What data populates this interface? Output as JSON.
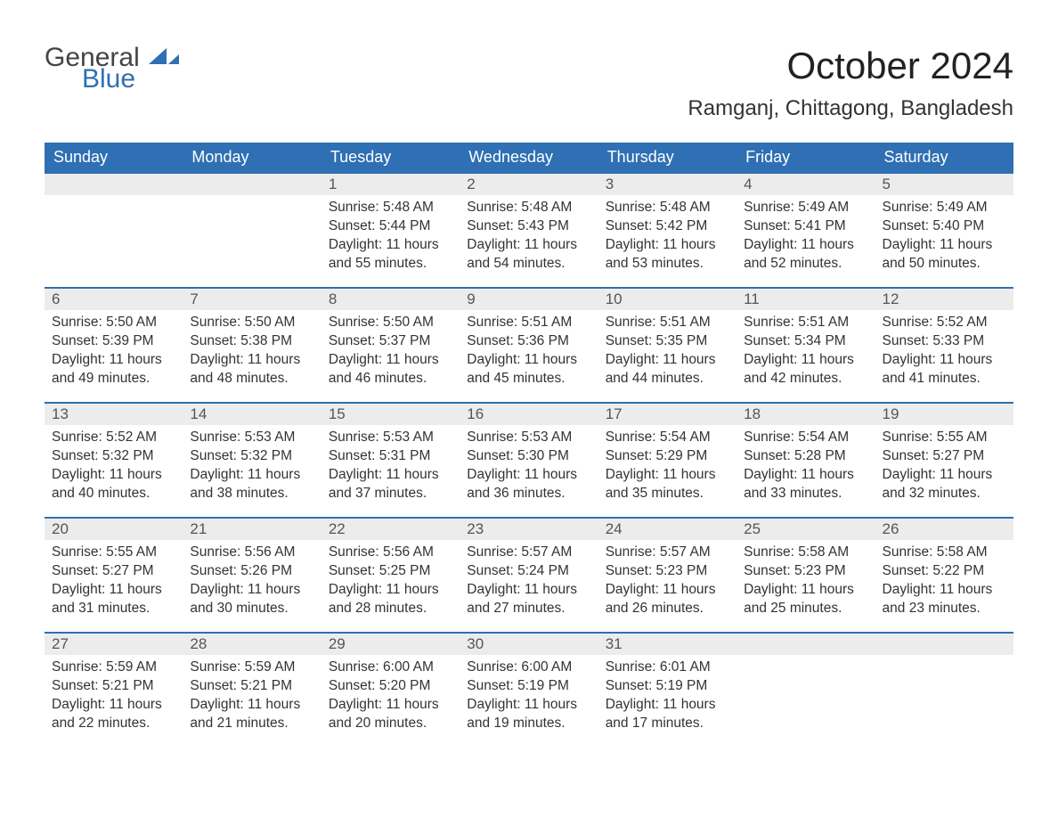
{
  "logo": {
    "text1": "General",
    "text2": "Blue"
  },
  "title": "October 2024",
  "location": "Ramganj, Chittagong, Bangladesh",
  "header_color": "#2f6fb3",
  "header_text_color": "#ffffff",
  "daynum_bg": "#ececec",
  "accent_line_color": "#2f6fb3",
  "text_color": "#333333",
  "font_family": "Arial",
  "day_headers": [
    "Sunday",
    "Monday",
    "Tuesday",
    "Wednesday",
    "Thursday",
    "Friday",
    "Saturday"
  ],
  "weeks": [
    [
      null,
      null,
      {
        "n": "1",
        "sunrise": "5:48 AM",
        "sunset": "5:44 PM",
        "daylight": "11 hours and 55 minutes."
      },
      {
        "n": "2",
        "sunrise": "5:48 AM",
        "sunset": "5:43 PM",
        "daylight": "11 hours and 54 minutes."
      },
      {
        "n": "3",
        "sunrise": "5:48 AM",
        "sunset": "5:42 PM",
        "daylight": "11 hours and 53 minutes."
      },
      {
        "n": "4",
        "sunrise": "5:49 AM",
        "sunset": "5:41 PM",
        "daylight": "11 hours and 52 minutes."
      },
      {
        "n": "5",
        "sunrise": "5:49 AM",
        "sunset": "5:40 PM",
        "daylight": "11 hours and 50 minutes."
      }
    ],
    [
      {
        "n": "6",
        "sunrise": "5:50 AM",
        "sunset": "5:39 PM",
        "daylight": "11 hours and 49 minutes."
      },
      {
        "n": "7",
        "sunrise": "5:50 AM",
        "sunset": "5:38 PM",
        "daylight": "11 hours and 48 minutes."
      },
      {
        "n": "8",
        "sunrise": "5:50 AM",
        "sunset": "5:37 PM",
        "daylight": "11 hours and 46 minutes."
      },
      {
        "n": "9",
        "sunrise": "5:51 AM",
        "sunset": "5:36 PM",
        "daylight": "11 hours and 45 minutes."
      },
      {
        "n": "10",
        "sunrise": "5:51 AM",
        "sunset": "5:35 PM",
        "daylight": "11 hours and 44 minutes."
      },
      {
        "n": "11",
        "sunrise": "5:51 AM",
        "sunset": "5:34 PM",
        "daylight": "11 hours and 42 minutes."
      },
      {
        "n": "12",
        "sunrise": "5:52 AM",
        "sunset": "5:33 PM",
        "daylight": "11 hours and 41 minutes."
      }
    ],
    [
      {
        "n": "13",
        "sunrise": "5:52 AM",
        "sunset": "5:32 PM",
        "daylight": "11 hours and 40 minutes."
      },
      {
        "n": "14",
        "sunrise": "5:53 AM",
        "sunset": "5:32 PM",
        "daylight": "11 hours and 38 minutes."
      },
      {
        "n": "15",
        "sunrise": "5:53 AM",
        "sunset": "5:31 PM",
        "daylight": "11 hours and 37 minutes."
      },
      {
        "n": "16",
        "sunrise": "5:53 AM",
        "sunset": "5:30 PM",
        "daylight": "11 hours and 36 minutes."
      },
      {
        "n": "17",
        "sunrise": "5:54 AM",
        "sunset": "5:29 PM",
        "daylight": "11 hours and 35 minutes."
      },
      {
        "n": "18",
        "sunrise": "5:54 AM",
        "sunset": "5:28 PM",
        "daylight": "11 hours and 33 minutes."
      },
      {
        "n": "19",
        "sunrise": "5:55 AM",
        "sunset": "5:27 PM",
        "daylight": "11 hours and 32 minutes."
      }
    ],
    [
      {
        "n": "20",
        "sunrise": "5:55 AM",
        "sunset": "5:27 PM",
        "daylight": "11 hours and 31 minutes."
      },
      {
        "n": "21",
        "sunrise": "5:56 AM",
        "sunset": "5:26 PM",
        "daylight": "11 hours and 30 minutes."
      },
      {
        "n": "22",
        "sunrise": "5:56 AM",
        "sunset": "5:25 PM",
        "daylight": "11 hours and 28 minutes."
      },
      {
        "n": "23",
        "sunrise": "5:57 AM",
        "sunset": "5:24 PM",
        "daylight": "11 hours and 27 minutes."
      },
      {
        "n": "24",
        "sunrise": "5:57 AM",
        "sunset": "5:23 PM",
        "daylight": "11 hours and 26 minutes."
      },
      {
        "n": "25",
        "sunrise": "5:58 AM",
        "sunset": "5:23 PM",
        "daylight": "11 hours and 25 minutes."
      },
      {
        "n": "26",
        "sunrise": "5:58 AM",
        "sunset": "5:22 PM",
        "daylight": "11 hours and 23 minutes."
      }
    ],
    [
      {
        "n": "27",
        "sunrise": "5:59 AM",
        "sunset": "5:21 PM",
        "daylight": "11 hours and 22 minutes."
      },
      {
        "n": "28",
        "sunrise": "5:59 AM",
        "sunset": "5:21 PM",
        "daylight": "11 hours and 21 minutes."
      },
      {
        "n": "29",
        "sunrise": "6:00 AM",
        "sunset": "5:20 PM",
        "daylight": "11 hours and 20 minutes."
      },
      {
        "n": "30",
        "sunrise": "6:00 AM",
        "sunset": "5:19 PM",
        "daylight": "11 hours and 19 minutes."
      },
      {
        "n": "31",
        "sunrise": "6:01 AM",
        "sunset": "5:19 PM",
        "daylight": "11 hours and 17 minutes."
      },
      null,
      null
    ]
  ],
  "labels": {
    "sunrise_prefix": "Sunrise: ",
    "sunset_prefix": "Sunset: ",
    "daylight_prefix": "Daylight: "
  }
}
